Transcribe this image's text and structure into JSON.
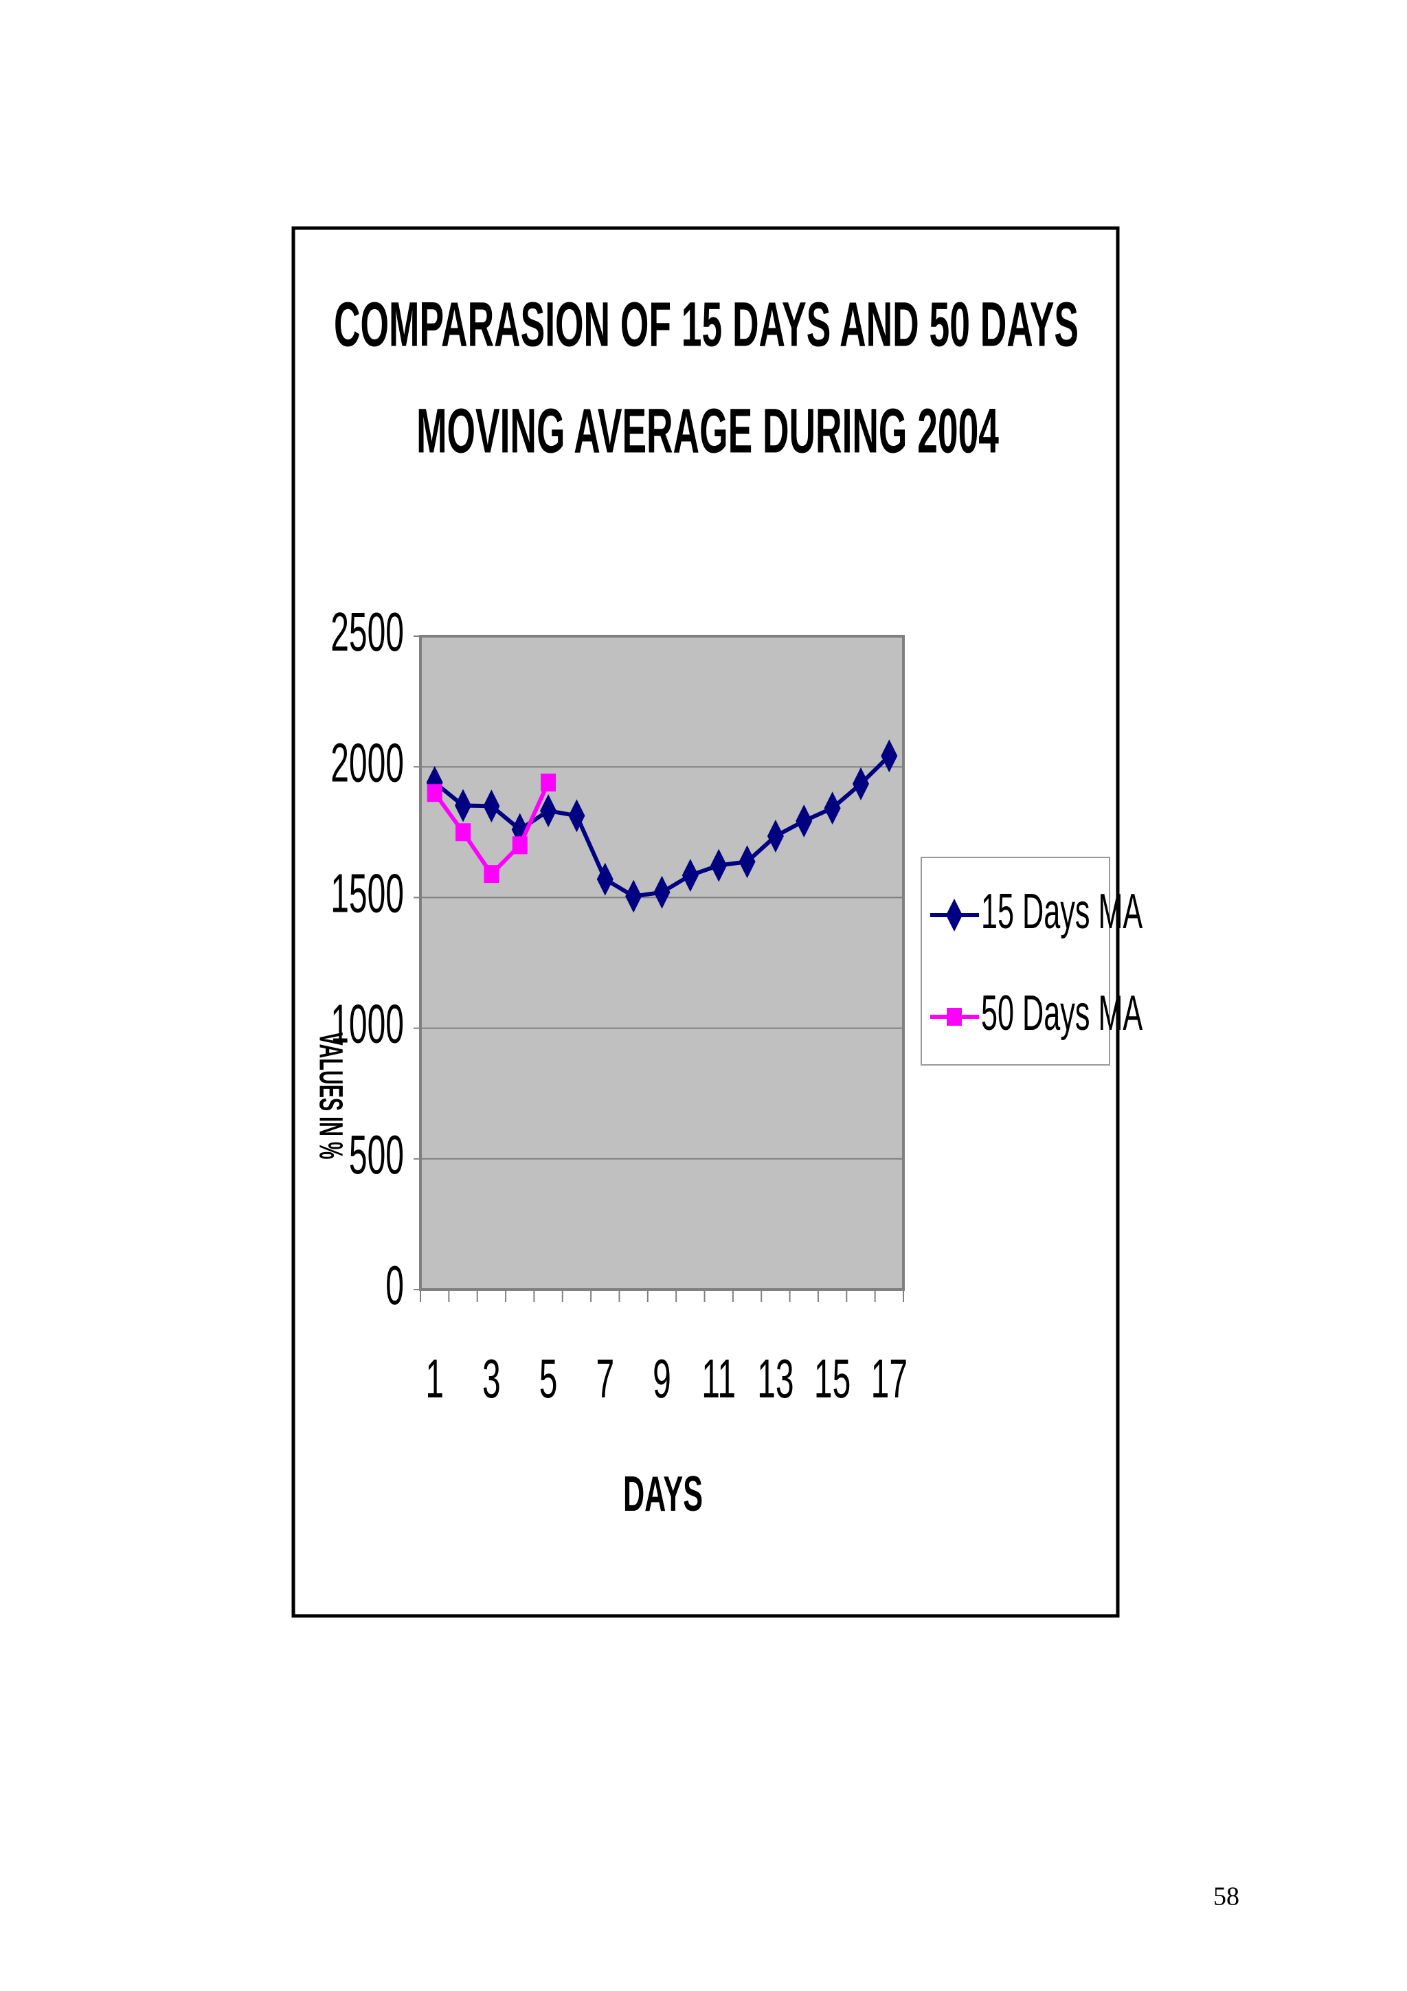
{
  "chart_data": {
    "type": "line",
    "title": [
      "COMPARASION OF 15 DAYS AND 50 DAYS",
      "MOVING AVERAGE DURING 2004"
    ],
    "x_label": "DAYS",
    "y_label": "VALUES IN %",
    "categories": [
      "1",
      null,
      "3",
      null,
      "5",
      null,
      "7",
      null,
      "9",
      null,
      "11",
      null,
      "13",
      null,
      "15",
      null,
      "17"
    ],
    "series": [
      {
        "name": "15 Days MA",
        "color": "#000080",
        "marker": "diamond",
        "values": [
          1940,
          1852,
          1850,
          1760,
          1832,
          1813,
          1570,
          1505,
          1520,
          1585,
          1623,
          1637,
          1735,
          1793,
          1842,
          1935,
          2042
        ]
      },
      {
        "name": "50 Days MA",
        "color": "#ff00ff",
        "marker": "square",
        "values": [
          1900,
          1750,
          1590,
          1700,
          1940,
          null,
          null,
          null,
          null,
          null,
          null,
          null,
          null,
          null,
          null,
          null,
          null
        ]
      }
    ],
    "ylim": [
      0,
      2500
    ],
    "yticks": [
      0,
      500,
      1000,
      1500,
      2000,
      2500
    ],
    "grid": true,
    "legend": "right",
    "page_number": "58"
  }
}
